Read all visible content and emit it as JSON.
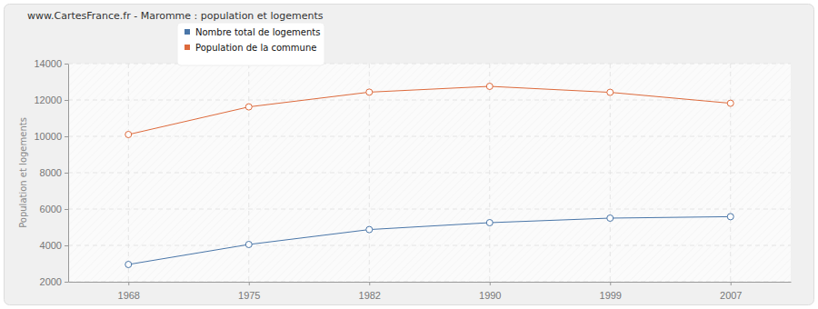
{
  "chart_data": {
    "type": "line",
    "title": "www.CartesFrance.fr - Maromme : population et logements",
    "y_label": "Population et logements",
    "categories": [
      "1968",
      "1975",
      "1982",
      "1990",
      "1999",
      "2007"
    ],
    "series": [
      {
        "name": "Nombre total de logements",
        "color": "#4a76a8",
        "marker": "circle",
        "values": [
          2950,
          4050,
          4870,
          5250,
          5500,
          5580
        ]
      },
      {
        "name": "Population de la commune",
        "color": "#dd6a3c",
        "marker": "circle",
        "values": [
          10100,
          11620,
          12430,
          12750,
          12420,
          11820
        ]
      }
    ],
    "ylim": [
      2000,
      14000
    ],
    "yticks": [
      2000,
      4000,
      6000,
      8000,
      10000,
      12000,
      14000
    ],
    "grid": true,
    "legend": "top"
  }
}
